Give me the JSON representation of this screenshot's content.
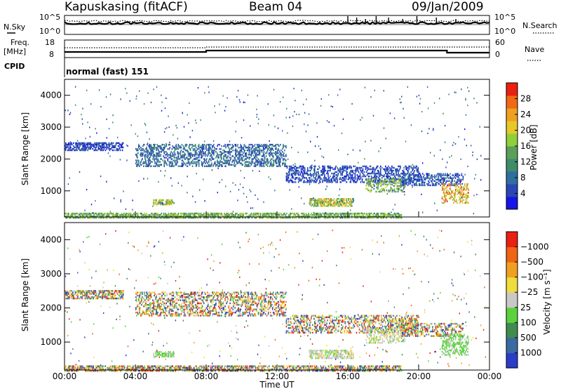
{
  "header": {
    "station": "Kapuskasing (fitACF)",
    "beam": "Beam 04",
    "date": "09/Jan/2009"
  },
  "top_panels": {
    "noise": {
      "left_label": "N.Sky",
      "right_label": "N.Search",
      "tick_hi": "10^5",
      "tick_lo": "10^0"
    },
    "freq": {
      "left_label_1": "Freq.",
      "left_label_2": "[MHz]",
      "ticks_left": [
        "18",
        "8"
      ],
      "right_label": "Nave",
      "ticks_right": [
        "60",
        "0"
      ]
    },
    "cpid": {
      "label": "CPID",
      "text": "normal (fast) 151"
    }
  },
  "chart_data": [
    {
      "type": "heatmap",
      "panel": "power",
      "title": "",
      "xlabel": "",
      "ylabel": "Slant Range [km]",
      "xlim": [
        0,
        24
      ],
      "ylim": [
        180,
        4500
      ],
      "ytick_values": [
        1000,
        2000,
        3000,
        4000
      ],
      "ytick_labels": [
        "1000",
        "2000",
        "3000",
        "4000"
      ],
      "colorbar_label": "Power [dB]",
      "colorbar_ticks": [
        "4",
        "8",
        "12",
        "16",
        "20",
        "24",
        "28"
      ],
      "colorbar_colors": [
        "#1414e6",
        "#2a46b4",
        "#2e6f9e",
        "#3e8c6a",
        "#5a9e5a",
        "#8fcf3a",
        "#e6c828",
        "#f0a020",
        "#f06a14",
        "#ea2010"
      ],
      "echo_regions": [
        {
          "t0": 0.0,
          "t1": 3.3,
          "r0": 2300,
          "r1": 2550,
          "min": 2,
          "max": 7
        },
        {
          "t0": 4.0,
          "t1": 12.5,
          "r0": 1800,
          "r1": 2500,
          "min": 3,
          "max": 12
        },
        {
          "t0": 5.0,
          "t1": 6.2,
          "r0": 600,
          "r1": 780,
          "min": 12,
          "max": 24
        },
        {
          "t0": 13.8,
          "t1": 16.3,
          "r0": 550,
          "r1": 800,
          "min": 10,
          "max": 26
        },
        {
          "t0": 12.5,
          "t1": 20.0,
          "r0": 1300,
          "r1": 1800,
          "min": 2,
          "max": 8
        },
        {
          "t0": 17.0,
          "t1": 19.2,
          "r0": 1000,
          "r1": 1450,
          "min": 8,
          "max": 22
        },
        {
          "t0": 19.0,
          "t1": 22.5,
          "r0": 1200,
          "r1": 1600,
          "min": 2,
          "max": 10
        },
        {
          "t0": 21.3,
          "t1": 22.8,
          "r0": 650,
          "r1": 1250,
          "min": 16,
          "max": 30
        },
        {
          "t0": 0.0,
          "t1": 19.0,
          "r0": 180,
          "r1": 330,
          "min": 10,
          "max": 20
        }
      ]
    },
    {
      "type": "heatmap",
      "panel": "velocity",
      "title": "",
      "xlabel": "Time UT",
      "ylabel": "Slant Range [km]",
      "xlim": [
        0,
        24
      ],
      "ylim": [
        180,
        4500
      ],
      "ytick_values": [
        1000,
        2000,
        3000,
        4000
      ],
      "ytick_labels": [
        "1000",
        "2000",
        "3000",
        "4000"
      ],
      "xtick_values": [
        0,
        4,
        8,
        12,
        16,
        20,
        24
      ],
      "xtick_labels": [
        "00:00",
        "04:00",
        "08:00",
        "12:00",
        "16:00",
        "20:00",
        "00:00"
      ],
      "colorbar_label": "Velocity [m s⁻¹]",
      "colorbar_ticks": [
        "1000",
        "500",
        "100",
        "25",
        "−25",
        "−100",
        "−500",
        "−1000"
      ],
      "colorbar_colors": [
        "#2a3cc8",
        "#3a6aa0",
        "#3e8c50",
        "#5ad23c",
        "#c8c8c8",
        "#f0dc3c",
        "#f0a020",
        "#f06414",
        "#ea2010"
      ],
      "echo_regions": [
        {
          "t0": 0.0,
          "t1": 3.3,
          "r0": 2300,
          "r1": 2550,
          "kind": "mixed"
        },
        {
          "t0": 4.0,
          "t1": 12.5,
          "r0": 1800,
          "r1": 2500,
          "kind": "mixed"
        },
        {
          "t0": 5.0,
          "t1": 6.2,
          "r0": 600,
          "r1": 780,
          "kind": "green"
        },
        {
          "t0": 13.8,
          "t1": 16.3,
          "r0": 550,
          "r1": 800,
          "kind": "gray"
        },
        {
          "t0": 12.5,
          "t1": 20.0,
          "r0": 1300,
          "r1": 1800,
          "kind": "mixed"
        },
        {
          "t0": 17.0,
          "t1": 19.2,
          "r0": 1000,
          "r1": 1450,
          "kind": "gray"
        },
        {
          "t0": 19.0,
          "t1": 22.5,
          "r0": 1200,
          "r1": 1600,
          "kind": "mixed"
        },
        {
          "t0": 21.3,
          "t1": 22.8,
          "r0": 650,
          "r1": 1250,
          "kind": "green"
        },
        {
          "t0": 0.0,
          "t1": 19.0,
          "r0": 180,
          "r1": 330,
          "kind": "mixed"
        }
      ]
    }
  ]
}
